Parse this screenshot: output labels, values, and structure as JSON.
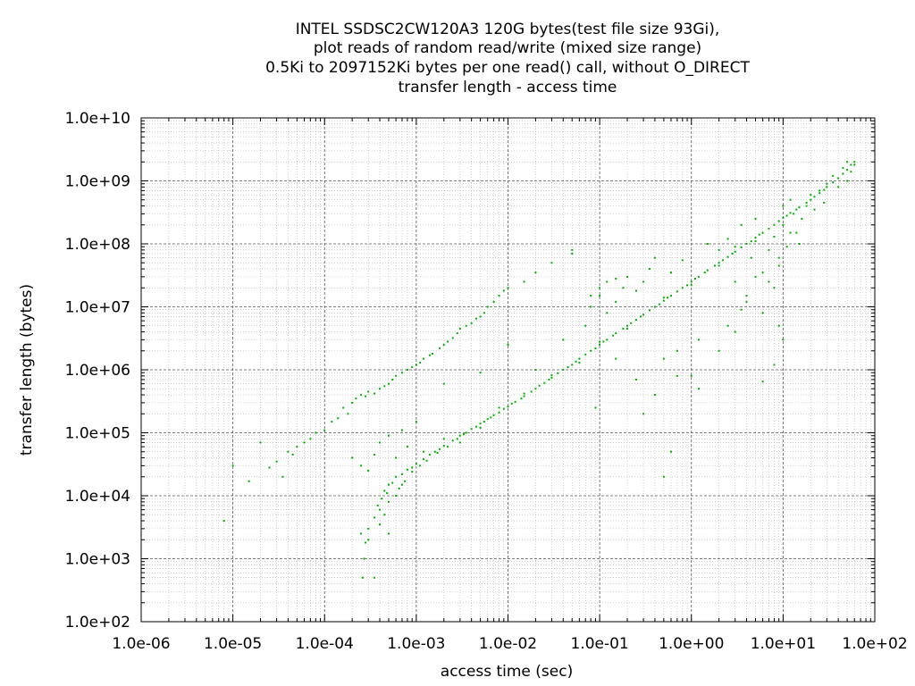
{
  "chart_data": {
    "type": "scatter",
    "title": [
      "INTEL SSDSC2CW120A3 120G bytes(test file size 93Gi),",
      "plot reads of random read/write (mixed size range)",
      "0.5Ki to 2097152Ki bytes per one read() call, without O_DIRECT",
      "transfer length - access time"
    ],
    "xlabel": "access time (sec)",
    "ylabel": "transfer length (bytes)",
    "x_scale": "log",
    "y_scale": "log",
    "xlim": [
      1e-06,
      100
    ],
    "ylim": [
      100,
      10000000000
    ],
    "x_ticks": [
      1e-06,
      1e-05,
      0.0001,
      0.001,
      0.01,
      0.1,
      1,
      10,
      100
    ],
    "x_tick_labels": [
      "1.0e-06",
      "1.0e-05",
      "1.0e-04",
      "1.0e-03",
      "1.0e-02",
      "1.0e-01",
      "1.0e+00",
      "1.0e+01",
      "1.0e+02"
    ],
    "y_ticks": [
      100,
      1000,
      10000,
      100000,
      1000000,
      10000000,
      100000000,
      1000000000,
      10000000000
    ],
    "y_tick_labels": [
      "1.0e+02",
      "1.0e+03",
      "1.0e+04",
      "1.0e+05",
      "1.0e+06",
      "1.0e+07",
      "1.0e+08",
      "1.0e+09",
      "1.0e+10"
    ],
    "grid": true,
    "minor_grid": true,
    "point_color": "#00b000",
    "series": [
      {
        "points": [
          [
            0.00045,
            12000
          ],
          [
            0.0005,
            15000
          ],
          [
            0.00055,
            16000
          ],
          [
            0.0006,
            20000
          ],
          [
            0.0007,
            22000
          ],
          [
            0.0008,
            26000
          ],
          [
            0.0009,
            28000
          ],
          [
            0.001,
            32000
          ],
          [
            0.0012,
            38000
          ],
          [
            0.0014,
            45000
          ],
          [
            0.0016,
            50000
          ],
          [
            0.0018,
            55000
          ],
          [
            0.002,
            62000
          ],
          [
            0.0025,
            75000
          ],
          [
            0.003,
            90000
          ],
          [
            0.0035,
            100000
          ],
          [
            0.004,
            115000
          ],
          [
            0.005,
            140000
          ],
          [
            0.006,
            165000
          ],
          [
            0.007,
            190000
          ],
          [
            0.008,
            210000
          ],
          [
            0.01,
            260000
          ],
          [
            0.012,
            310000
          ],
          [
            0.015,
            380000
          ],
          [
            0.02,
            500000
          ],
          [
            0.025,
            620000
          ],
          [
            0.03,
            750000
          ],
          [
            0.04,
            1000000
          ],
          [
            0.05,
            1200000
          ],
          [
            0.06,
            1500000
          ],
          [
            0.08,
            2000000
          ],
          [
            0.1,
            2500000
          ],
          [
            0.12,
            3000000
          ],
          [
            0.15,
            3800000
          ],
          [
            0.2,
            5000000
          ],
          [
            0.25,
            6200000
          ],
          [
            0.3,
            7500000
          ],
          [
            0.4,
            10000000
          ],
          [
            0.5,
            12500000
          ],
          [
            0.6,
            15000000
          ],
          [
            0.8,
            20000000
          ],
          [
            1.0,
            25000000
          ],
          [
            1.2,
            30000000
          ],
          [
            1.5,
            38000000
          ],
          [
            2.0,
            50000000
          ],
          [
            2.5,
            62000000
          ],
          [
            3.0,
            75000000
          ],
          [
            4.0,
            100000000
          ],
          [
            5.0,
            125000000
          ],
          [
            6.0,
            150000000
          ],
          [
            8.0,
            200000000
          ],
          [
            10,
            260000000
          ],
          [
            12,
            310000000
          ],
          [
            15,
            380000000
          ],
          [
            20,
            500000000
          ],
          [
            25,
            640000000
          ],
          [
            30,
            800000000
          ],
          [
            40,
            1100000000
          ],
          [
            50,
            1500000000
          ],
          [
            60,
            2000000000
          ],
          [
            0.00025,
            2500
          ],
          [
            0.0003,
            3000
          ],
          [
            0.00035,
            4500
          ],
          [
            0.0004,
            6000
          ],
          [
            0.0004,
            3500
          ],
          [
            0.00045,
            5000
          ],
          [
            0.0005,
            8000
          ],
          [
            0.0005,
            2500
          ],
          [
            0.0006,
            10000
          ],
          [
            0.0007,
            15000
          ],
          [
            0.00026,
            500
          ],
          [
            0.00035,
            500
          ],
          [
            0.00027,
            1000
          ],
          [
            0.00028,
            1800
          ],
          [
            0.0003,
            2000
          ],
          [
            0.00038,
            7000
          ],
          [
            0.00042,
            9000
          ],
          [
            0.00048,
            11000
          ],
          [
            0.00065,
            13000
          ],
          [
            0.00075,
            17000
          ],
          [
            0.0009,
            24000
          ],
          [
            0.0011,
            30000
          ],
          [
            0.0013,
            36000
          ],
          [
            0.0017,
            48000
          ],
          [
            0.0022,
            60000
          ],
          [
            0.0028,
            80000
          ],
          [
            0.0033,
            95000
          ],
          [
            0.0045,
            125000
          ],
          [
            0.0055,
            150000
          ],
          [
            0.0065,
            175000
          ],
          [
            0.009,
            240000
          ],
          [
            0.011,
            290000
          ],
          [
            0.014,
            350000
          ],
          [
            0.018,
            450000
          ],
          [
            0.022,
            560000
          ],
          [
            0.028,
            700000
          ],
          [
            0.035,
            880000
          ],
          [
            0.045,
            1100000
          ],
          [
            0.055,
            1350000
          ],
          [
            0.07,
            1750000
          ],
          [
            0.09,
            2200000
          ],
          [
            0.11,
            2800000
          ],
          [
            0.14,
            3500000
          ],
          [
            0.18,
            4500000
          ],
          [
            0.22,
            5500000
          ],
          [
            0.28,
            7000000
          ],
          [
            0.35,
            8800000
          ],
          [
            0.45,
            11000000
          ],
          [
            0.55,
            14000000
          ],
          [
            0.7,
            17500000
          ],
          [
            0.9,
            22000000
          ],
          [
            1.1,
            28000000
          ],
          [
            1.4,
            35000000
          ],
          [
            1.8,
            45000000
          ],
          [
            2.2,
            55000000
          ],
          [
            2.8,
            70000000
          ],
          [
            3.5,
            88000000
          ],
          [
            4.5,
            110000000
          ],
          [
            5.5,
            140000000
          ],
          [
            7.0,
            175000000
          ],
          [
            9.0,
            230000000
          ],
          [
            11,
            280000000
          ],
          [
            14,
            350000000
          ],
          [
            18,
            450000000
          ],
          [
            22,
            560000000
          ],
          [
            28,
            720000000
          ],
          [
            35,
            950000000
          ],
          [
            45,
            1300000000
          ],
          [
            55,
            1800000000
          ],
          [
            0.0012,
            50000
          ],
          [
            0.002,
            80000
          ],
          [
            0.003,
            70000
          ],
          [
            0.005,
            120000
          ],
          [
            0.008,
            250000
          ],
          [
            0.015,
            420000
          ],
          [
            0.03,
            820000
          ],
          [
            0.06,
            1300000
          ],
          [
            0.1,
            2800000
          ],
          [
            0.2,
            4500000
          ],
          [
            0.5,
            14000000
          ],
          [
            1.0,
            22000000
          ],
          [
            2.0,
            45000000
          ],
          [
            3.0,
            90000000
          ],
          [
            5.0,
            110000000
          ],
          [
            2e-05,
            70000
          ],
          [
            1.5e-05,
            17000
          ],
          [
            2.5e-05,
            28000
          ],
          [
            3e-05,
            35000
          ],
          [
            4e-05,
            50000
          ],
          [
            5e-05,
            60000
          ],
          [
            6e-05,
            70000
          ],
          [
            7e-05,
            80000
          ],
          [
            8e-05,
            100000
          ],
          [
            0.0001,
            110000
          ],
          [
            0.00012,
            150000
          ],
          [
            0.00014,
            170000
          ],
          [
            0.00016,
            250000
          ],
          [
            0.0002,
            300000
          ],
          [
            0.00025,
            400000
          ],
          [
            0.0003,
            450000
          ],
          [
            0.0004,
            500000
          ],
          [
            0.0005,
            600000
          ],
          [
            0.0006,
            800000
          ],
          [
            0.0008,
            1000000
          ],
          [
            0.001,
            1200000
          ],
          [
            0.0012,
            1500000
          ],
          [
            0.0015,
            1800000
          ],
          [
            0.002,
            2500000
          ],
          [
            0.0025,
            3200000
          ],
          [
            0.003,
            4500000
          ],
          [
            0.004,
            5500000
          ],
          [
            0.005,
            7000000
          ],
          [
            0.006,
            10000000
          ],
          [
            0.008,
            15000000
          ],
          [
            0.01,
            20000000
          ],
          [
            0.015,
            25000000
          ],
          [
            0.02,
            35000000
          ],
          [
            0.03,
            50000000
          ],
          [
            0.05,
            70000000
          ],
          [
            0.00018,
            200000
          ],
          [
            0.00022,
            350000
          ],
          [
            0.00028,
            380000
          ],
          [
            0.00035,
            420000
          ],
          [
            0.00045,
            550000
          ],
          [
            0.00055,
            700000
          ],
          [
            0.0007,
            900000
          ],
          [
            0.0009,
            1100000
          ],
          [
            0.0011,
            1300000
          ],
          [
            0.0014,
            1700000
          ],
          [
            0.0018,
            2200000
          ],
          [
            0.0022,
            2800000
          ],
          [
            0.0028,
            3800000
          ],
          [
            0.0035,
            5000000
          ],
          [
            0.0045,
            6500000
          ],
          [
            0.0055,
            8000000
          ],
          [
            0.007,
            12000000
          ],
          [
            0.009,
            18000000
          ],
          [
            8e-06,
            4000
          ],
          [
            3.5e-05,
            20000
          ],
          [
            1e-05,
            30000
          ],
          [
            4.5e-05,
            45000
          ],
          [
            0.05,
            80000000
          ],
          [
            0.08,
            10000000
          ],
          [
            0.1,
            15000000
          ],
          [
            0.12,
            8000000
          ],
          [
            0.15,
            12000000
          ],
          [
            0.2,
            30000000
          ],
          [
            0.25,
            18000000
          ],
          [
            0.3,
            25000000
          ],
          [
            0.35,
            40000000
          ],
          [
            0.4,
            60000000
          ],
          [
            0.5,
            1500000
          ],
          [
            0.6,
            35000000
          ],
          [
            0.7,
            2000000
          ],
          [
            0.8,
            55000000
          ],
          [
            1.0,
            800000
          ],
          [
            1.5,
            100000000
          ],
          [
            2.0,
            80000000
          ],
          [
            2.5,
            120000000
          ],
          [
            3.0,
            25000000
          ],
          [
            3.5,
            200000000
          ],
          [
            4.0,
            15000000
          ],
          [
            4.5,
            60000000
          ],
          [
            5.0,
            250000000
          ],
          [
            6.0,
            35000000
          ],
          [
            7.0,
            80000000
          ],
          [
            8.0,
            130000000
          ],
          [
            9.0,
            45000000
          ],
          [
            10,
            400000000
          ],
          [
            12,
            150000000
          ],
          [
            15,
            100000000
          ],
          [
            0.002,
            600000
          ],
          [
            0.005,
            900000
          ],
          [
            0.01,
            2500000
          ],
          [
            0.02,
            1000000
          ],
          [
            0.04,
            3000000
          ],
          [
            0.07,
            5000000
          ],
          [
            0.09,
            250000
          ],
          [
            0.15,
            1500000
          ],
          [
            0.25,
            700000
          ],
          [
            0.4,
            400000
          ],
          [
            0.6,
            50000
          ],
          [
            1.2,
            500000
          ],
          [
            2.0,
            2000000
          ],
          [
            3.0,
            4000000
          ],
          [
            4.0,
            12000000
          ],
          [
            5.0,
            30000000
          ],
          [
            6.0,
            8000000
          ],
          [
            7.0,
            25000000
          ],
          [
            8.0,
            20000000
          ],
          [
            9.0,
            60000000
          ],
          [
            10,
            200000000
          ],
          [
            11,
            90000000
          ],
          [
            12,
            500000000
          ],
          [
            13,
            300000000
          ],
          [
            14,
            150000000
          ],
          [
            16,
            250000000
          ],
          [
            18,
            400000000
          ],
          [
            20,
            600000000
          ],
          [
            22,
            350000000
          ],
          [
            25,
            700000000
          ],
          [
            28,
            450000000
          ],
          [
            30,
            900000000
          ],
          [
            35,
            1200000000
          ],
          [
            40,
            800000000
          ],
          [
            45,
            1600000000
          ],
          [
            50,
            1000000000
          ],
          [
            55,
            1400000000
          ],
          [
            60,
            1800000000
          ],
          [
            50,
            2000000000
          ],
          [
            0.0002,
            40000
          ],
          [
            0.00025,
            30000
          ],
          [
            0.0003,
            25000
          ],
          [
            0.00035,
            45000
          ],
          [
            0.0004,
            70000
          ],
          [
            0.0005,
            90000
          ],
          [
            0.0006,
            40000
          ],
          [
            0.0007,
            110000
          ],
          [
            0.0008,
            60000
          ],
          [
            0.001,
            150000
          ],
          [
            0.08,
            15000000
          ],
          [
            0.1,
            20000000
          ],
          [
            0.12,
            25000000
          ],
          [
            0.15,
            28000000
          ],
          [
            0.18,
            20000000
          ],
          [
            0.3,
            200000
          ],
          [
            0.5,
            20000
          ],
          [
            0.7,
            800000
          ],
          [
            1.2,
            3000000
          ],
          [
            2.5,
            5000000
          ],
          [
            3.5,
            9000000
          ],
          [
            6.0,
            650000
          ],
          [
            8.0,
            1200000
          ],
          [
            9.0,
            5000000
          ],
          [
            10,
            3000000
          ]
        ]
      }
    ]
  }
}
